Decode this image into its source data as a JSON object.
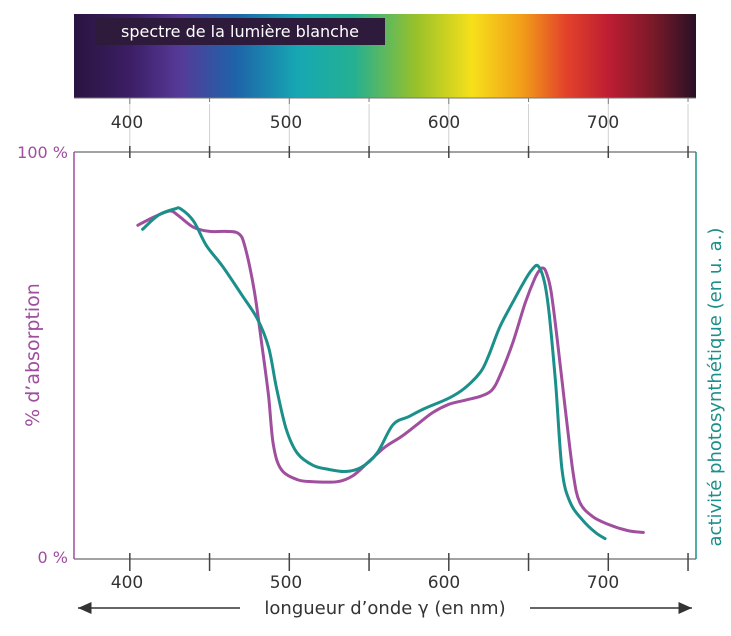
{
  "spectrum": {
    "label": "spectre de la lumière blanche",
    "ticks": [
      "400",
      "500",
      "600",
      "700"
    ]
  },
  "axes": {
    "x_label": "longueur d’onde γ (en nm)",
    "x_ticks": [
      "400",
      "500",
      "600",
      "700"
    ],
    "y_left_label": "% d’absorption",
    "y_left_top": "100 %",
    "y_left_bottom": "0 %",
    "y_right_label": "activité photosynthétique (en u. a.)"
  },
  "colors": {
    "absorption": "#a04e9e",
    "activity": "#1b8f8a",
    "axis_left": "#a04e9e",
    "axis_right": "#1b8f8a",
    "grid": "#555555"
  },
  "chart_data": {
    "type": "line",
    "title": "",
    "xlabel": "longueur d’onde γ (en nm)",
    "ylabel": "% d’absorption",
    "y2label": "activité photosynthétique (en u. a.)",
    "xlim": [
      365,
      755
    ],
    "ylim": [
      0,
      100
    ],
    "grid": false,
    "series": [
      {
        "key": "absorption",
        "axis": "left",
        "points": [
          [
            405,
            82
          ],
          [
            415,
            84
          ],
          [
            425,
            85.5
          ],
          [
            430,
            84.5
          ],
          [
            440,
            81.5
          ],
          [
            450,
            80.5
          ],
          [
            460,
            80.5
          ],
          [
            468,
            80
          ],
          [
            472,
            77
          ],
          [
            478,
            66
          ],
          [
            483,
            52
          ],
          [
            487,
            40
          ],
          [
            490,
            28
          ],
          [
            495,
            22
          ],
          [
            505,
            19.5
          ],
          [
            515,
            19
          ],
          [
            530,
            19
          ],
          [
            540,
            20.5
          ],
          [
            550,
            24
          ],
          [
            560,
            27.5
          ],
          [
            570,
            30
          ],
          [
            580,
            33
          ],
          [
            590,
            36
          ],
          [
            600,
            38
          ],
          [
            610,
            39
          ],
          [
            620,
            40
          ],
          [
            627,
            41.5
          ],
          [
            632,
            45
          ],
          [
            640,
            53
          ],
          [
            648,
            63
          ],
          [
            654,
            69
          ],
          [
            657,
            71
          ],
          [
            659,
            71.5
          ],
          [
            661,
            70.5
          ],
          [
            664,
            66
          ],
          [
            668,
            54
          ],
          [
            673,
            37
          ],
          [
            678,
            21
          ],
          [
            682,
            14
          ],
          [
            690,
            10.5
          ],
          [
            700,
            8.5
          ],
          [
            712,
            7
          ],
          [
            722,
            6.5
          ]
        ]
      },
      {
        "key": "activity",
        "axis": "right",
        "points": [
          [
            408,
            81
          ],
          [
            418,
            84.5
          ],
          [
            428,
            86
          ],
          [
            432,
            86
          ],
          [
            440,
            83
          ],
          [
            448,
            77
          ],
          [
            458,
            72
          ],
          [
            470,
            65
          ],
          [
            480,
            59
          ],
          [
            487,
            52
          ],
          [
            492,
            42
          ],
          [
            498,
            32
          ],
          [
            505,
            26
          ],
          [
            515,
            23
          ],
          [
            525,
            22
          ],
          [
            535,
            21.5
          ],
          [
            545,
            22.5
          ],
          [
            555,
            26
          ],
          [
            565,
            33
          ],
          [
            575,
            35
          ],
          [
            585,
            37
          ],
          [
            600,
            39.5
          ],
          [
            610,
            42
          ],
          [
            620,
            46
          ],
          [
            625,
            50
          ],
          [
            632,
            57
          ],
          [
            640,
            63
          ],
          [
            647,
            68
          ],
          [
            652,
            71
          ],
          [
            656,
            72
          ],
          [
            660,
            68
          ],
          [
            663,
            60
          ],
          [
            667,
            43
          ],
          [
            671,
            22
          ],
          [
            676,
            14
          ],
          [
            684,
            9.5
          ],
          [
            692,
            6.5
          ],
          [
            698,
            5
          ]
        ]
      }
    ]
  }
}
